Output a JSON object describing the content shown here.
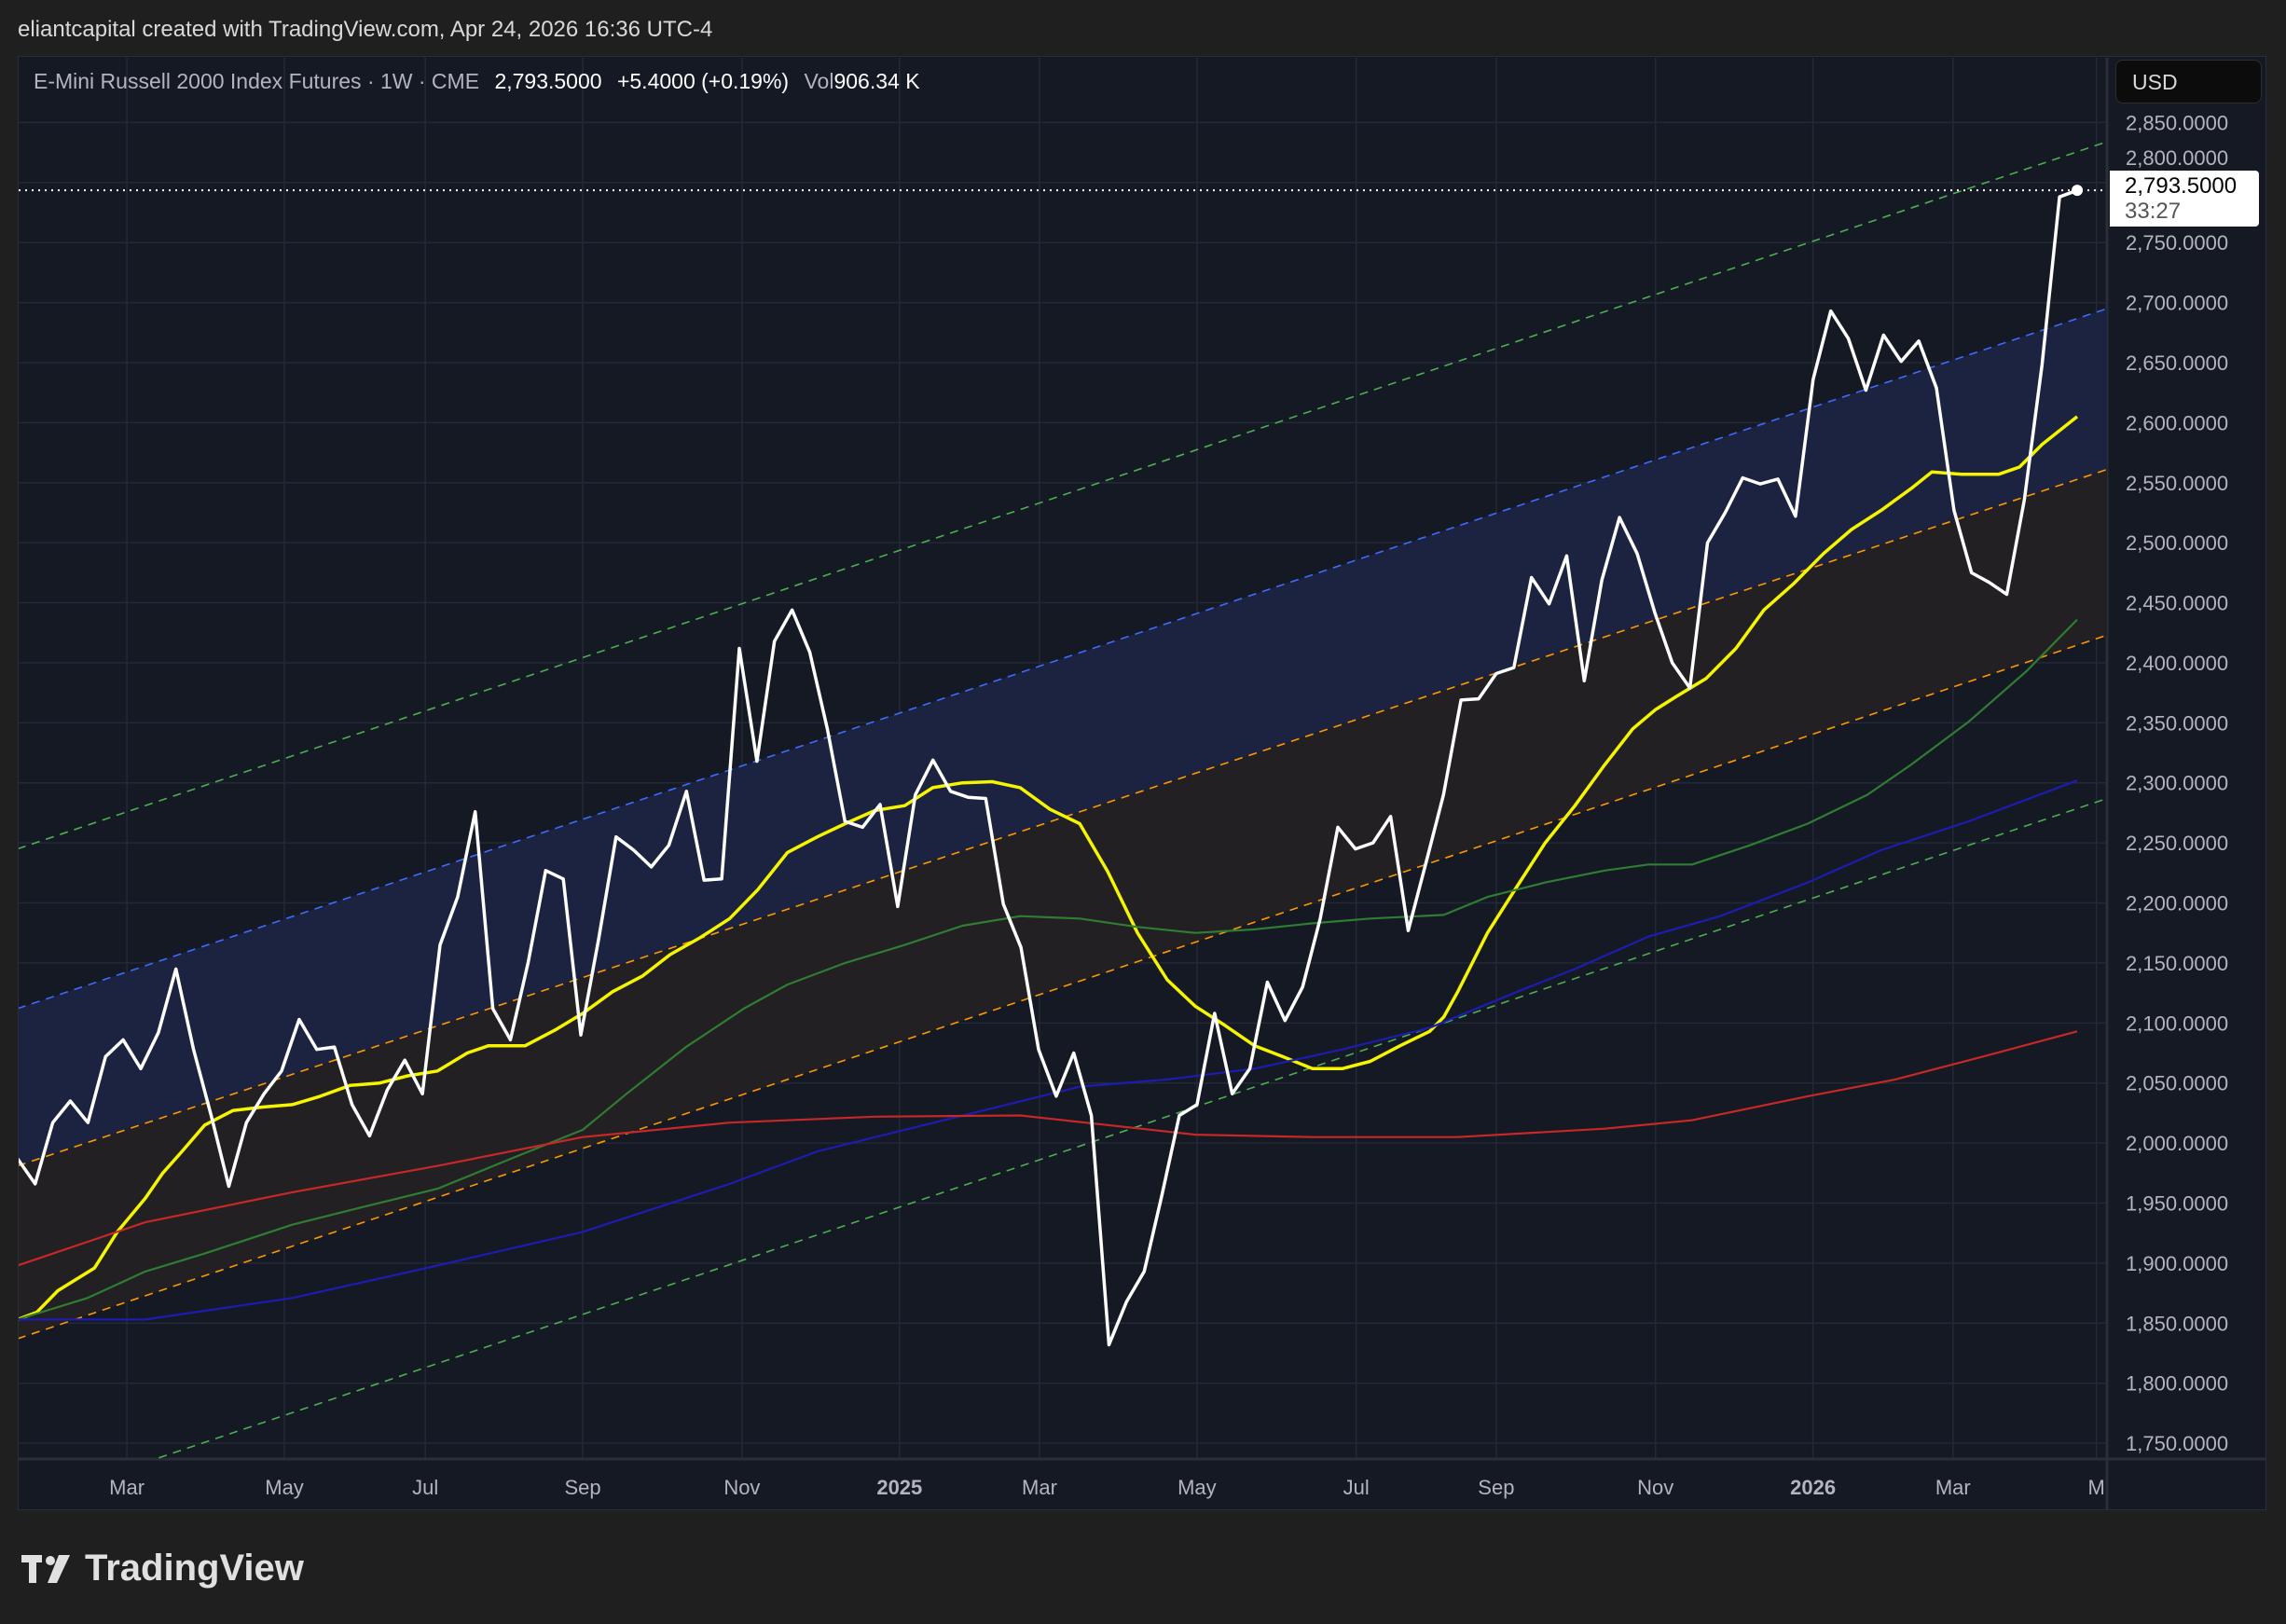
{
  "credit": "eliantcapital created with TradingView.com, Apr 24, 2026 16:36 UTC-4",
  "legend": {
    "symbol": "E-Mini Russell 2000 Index Futures · 1W · CME",
    "last": "2,793.5000",
    "change": "+5.4000 (+0.19%)",
    "vol_label": "Vol",
    "vol_value": "906.34 K"
  },
  "currency_button": "USD",
  "price_tag": {
    "price": "2,793.5000",
    "countdown": "33:27"
  },
  "logo_text": "TradingView",
  "chart_data": {
    "type": "line",
    "title": "E-Mini Russell 2000 Index Futures · 1W · CME",
    "x_unit": "week index from mid-Jan 2024",
    "ylim": [
      1725,
      2880
    ],
    "y_ticks": [
      1750,
      1800,
      1850,
      1900,
      1950,
      2000,
      2050,
      2100,
      2150,
      2200,
      2250,
      2300,
      2350,
      2400,
      2450,
      2500,
      2550,
      2600,
      2650,
      2700,
      2750,
      2800,
      2850
    ],
    "y_tick_labels": [
      "1,750.0000",
      "1,800.0000",
      "1,850.0000",
      "1,900.0000",
      "1,950.0000",
      "2,000.0000",
      "2,050.0000",
      "2,100.0000",
      "2,150.0000",
      "2,200.0000",
      "2,250.0000",
      "2,300.0000",
      "2,350.0000",
      "2,400.0000",
      "2,450.0000",
      "2,500.0000",
      "2,550.0000",
      "2,600.0000",
      "2,650.0000",
      "2,700.0000",
      "2,750.0000",
      "2,800.0000",
      "2,850.0000"
    ],
    "x_ticks": [
      {
        "label": "Mar",
        "week": 6.25,
        "bold": false
      },
      {
        "label": "May",
        "week": 15.25,
        "bold": false
      },
      {
        "label": "Jul",
        "week": 23.3,
        "bold": false
      },
      {
        "label": "Sep",
        "week": 32.3,
        "bold": false
      },
      {
        "label": "Nov",
        "week": 41.4,
        "bold": false
      },
      {
        "label": "2025",
        "week": 50.4,
        "bold": true
      },
      {
        "label": "Mar",
        "week": 58.4,
        "bold": false
      },
      {
        "label": "May",
        "week": 67.4,
        "bold": false
      },
      {
        "label": "Jul",
        "week": 76.5,
        "bold": false
      },
      {
        "label": "Sep",
        "week": 84.5,
        "bold": false
      },
      {
        "label": "Nov",
        "week": 93.6,
        "bold": false
      },
      {
        "label": "2026",
        "week": 102.6,
        "bold": true
      },
      {
        "label": "Mar",
        "week": 110.6,
        "bold": false
      },
      {
        "label": "M",
        "week": 118.8,
        "bold": false
      }
    ],
    "last_price": 2793.5,
    "close": [
      1987,
      1966,
      2017,
      2035,
      2017,
      2072,
      2086,
      2062,
      2092,
      2145,
      2078,
      2023,
      1964,
      2017,
      2041,
      2060,
      2103,
      2078,
      2080,
      2032,
      2006,
      2044,
      2069,
      2041,
      2165,
      2205,
      2276,
      2112,
      2086,
      2150,
      2227,
      2220,
      2090,
      2169,
      2255,
      2244,
      2230,
      2248,
      2293,
      2219,
      2220,
      2412,
      2318,
      2418,
      2444,
      2409,
      2345,
      2268,
      2263,
      2282,
      2197,
      2290,
      2319,
      2293,
      2288,
      2287,
      2199,
      2163,
      2078,
      2039,
      2075,
      2023,
      1832,
      1868,
      1893,
      1956,
      2023,
      2032,
      2108,
      2041,
      2062,
      2134,
      2102,
      2130,
      2187,
      2263,
      2245,
      2250,
      2272,
      2177,
      2233,
      2290,
      2369,
      2370,
      2391,
      2396,
      2471,
      2449,
      2489,
      2385,
      2469,
      2521,
      2491,
      2442,
      2400,
      2379,
      2500,
      2525,
      2554,
      2549,
      2553,
      2522,
      2636,
      2693,
      2670,
      2627,
      2673,
      2651,
      2668,
      2629,
      2527,
      2475,
      2467,
      2457,
      2536,
      2648,
      2788,
      2793.5
    ],
    "series": [
      {
        "name": "MA yellow",
        "color": "#f5f500",
        "points": [
          [
            0,
            1853
          ],
          [
            1.1,
            1859
          ],
          [
            2.3,
            1877
          ],
          [
            4.4,
            1896
          ],
          [
            5.7,
            1926
          ],
          [
            7.3,
            1954
          ],
          [
            8.3,
            1975
          ],
          [
            9.4,
            1993
          ],
          [
            10.7,
            2015
          ],
          [
            12.3,
            2027
          ],
          [
            14,
            2030
          ],
          [
            15.7,
            2032
          ],
          [
            17.3,
            2039
          ],
          [
            19,
            2048
          ],
          [
            20.7,
            2050
          ],
          [
            22.3,
            2056
          ],
          [
            24,
            2060
          ],
          [
            25.7,
            2075
          ],
          [
            26.9,
            2081
          ],
          [
            29,
            2081
          ],
          [
            30.7,
            2094
          ],
          [
            32.3,
            2108
          ],
          [
            34,
            2126
          ],
          [
            35.7,
            2139
          ],
          [
            37.3,
            2157
          ],
          [
            39,
            2171
          ],
          [
            40.7,
            2187
          ],
          [
            42.3,
            2211
          ],
          [
            44,
            2242
          ],
          [
            45.7,
            2255
          ],
          [
            47.3,
            2266
          ],
          [
            49,
            2277
          ],
          [
            50.7,
            2281
          ],
          [
            52.3,
            2296
          ],
          [
            54,
            2300
          ],
          [
            55.7,
            2301
          ],
          [
            57.3,
            2296
          ],
          [
            59,
            2278
          ],
          [
            60.7,
            2266
          ],
          [
            62.3,
            2226
          ],
          [
            64,
            2175
          ],
          [
            65.7,
            2136
          ],
          [
            67.3,
            2114
          ],
          [
            69,
            2098
          ],
          [
            70.7,
            2081
          ],
          [
            72.3,
            2072
          ],
          [
            74,
            2062
          ],
          [
            75.7,
            2062
          ],
          [
            77.3,
            2068
          ],
          [
            79,
            2081
          ],
          [
            80.7,
            2093
          ],
          [
            81.5,
            2105
          ],
          [
            82.3,
            2126
          ],
          [
            84,
            2175
          ],
          [
            85.7,
            2214
          ],
          [
            87.3,
            2250
          ],
          [
            89,
            2281
          ],
          [
            90.7,
            2315
          ],
          [
            92.3,
            2345
          ],
          [
            93.6,
            2361
          ],
          [
            94.8,
            2372
          ],
          [
            96.5,
            2387
          ],
          [
            98.2,
            2412
          ],
          [
            99.8,
            2444
          ],
          [
            101.5,
            2466
          ],
          [
            103.2,
            2491
          ],
          [
            104.8,
            2511
          ],
          [
            106.5,
            2527
          ],
          [
            108.2,
            2545
          ],
          [
            109.4,
            2559
          ],
          [
            111.1,
            2557
          ],
          [
            113.2,
            2557
          ],
          [
            114.4,
            2563
          ],
          [
            115.7,
            2582
          ],
          [
            117.7,
            2605
          ]
        ]
      },
      {
        "name": "MA green",
        "color": "#2e7d32",
        "points": [
          [
            0,
            1853
          ],
          [
            4,
            1871
          ],
          [
            7.3,
            1893
          ],
          [
            10.7,
            1908
          ],
          [
            15.7,
            1932
          ],
          [
            19.8,
            1947
          ],
          [
            24,
            1962
          ],
          [
            28.2,
            1987
          ],
          [
            32.3,
            2011
          ],
          [
            34.8,
            2041
          ],
          [
            38.2,
            2080
          ],
          [
            41.5,
            2112
          ],
          [
            44,
            2132
          ],
          [
            47.3,
            2150
          ],
          [
            50.7,
            2165
          ],
          [
            54,
            2181
          ],
          [
            57.3,
            2189
          ],
          [
            60.7,
            2187
          ],
          [
            64,
            2180
          ],
          [
            67.3,
            2175
          ],
          [
            70.7,
            2178
          ],
          [
            74,
            2183
          ],
          [
            77.3,
            2187
          ],
          [
            81.5,
            2190
          ],
          [
            84,
            2205
          ],
          [
            87.3,
            2217
          ],
          [
            90.7,
            2227
          ],
          [
            93.2,
            2232
          ],
          [
            95.7,
            2232
          ],
          [
            99,
            2248
          ],
          [
            102.3,
            2266
          ],
          [
            105.7,
            2290
          ],
          [
            108.2,
            2315
          ],
          [
            111.5,
            2351
          ],
          [
            114.8,
            2393
          ],
          [
            117.7,
            2436
          ]
        ]
      },
      {
        "name": "MA blue",
        "color": "#1c1cb0",
        "points": [
          [
            0,
            1853
          ],
          [
            7.3,
            1853
          ],
          [
            15.7,
            1871
          ],
          [
            24,
            1898
          ],
          [
            32.3,
            1926
          ],
          [
            40.7,
            1966
          ],
          [
            45.7,
            1993
          ],
          [
            50.7,
            2011
          ],
          [
            55.7,
            2029
          ],
          [
            60.7,
            2047
          ],
          [
            65.7,
            2053
          ],
          [
            70.7,
            2062
          ],
          [
            75.7,
            2078
          ],
          [
            80.7,
            2096
          ],
          [
            85.7,
            2126
          ],
          [
            89,
            2145
          ],
          [
            93.2,
            2172
          ],
          [
            97.3,
            2189
          ],
          [
            102.3,
            2217
          ],
          [
            106.5,
            2244
          ],
          [
            111.5,
            2268
          ],
          [
            117.7,
            2302
          ]
        ]
      },
      {
        "name": "MA red",
        "color": "#c62828",
        "points": [
          [
            0,
            1898
          ],
          [
            7.3,
            1934
          ],
          [
            15.7,
            1959
          ],
          [
            24,
            1981
          ],
          [
            32.3,
            2005
          ],
          [
            40.7,
            2017
          ],
          [
            49,
            2022
          ],
          [
            57.3,
            2023
          ],
          [
            62.3,
            2015
          ],
          [
            67.3,
            2007
          ],
          [
            74,
            2005
          ],
          [
            82.3,
            2005
          ],
          [
            90.7,
            2012
          ],
          [
            95.7,
            2019
          ],
          [
            102.3,
            2039
          ],
          [
            107.3,
            2053
          ],
          [
            112.3,
            2072
          ],
          [
            117.7,
            2093
          ]
        ]
      }
    ],
    "channel": [
      {
        "name": "upper green",
        "color": "#4caf50",
        "start": [
          0,
          2245
        ],
        "end": [
          119.4,
          2834
        ]
      },
      {
        "name": "blue",
        "color": "#3d6bff",
        "start": [
          0,
          2112
        ],
        "end": [
          119.4,
          2695
        ]
      },
      {
        "name": "orange upper",
        "color": "#ff9800",
        "start": [
          0,
          1981
        ],
        "end": [
          119.4,
          2561
        ]
      },
      {
        "name": "orange lower",
        "color": "#ff9800",
        "start": [
          0,
          1837
        ],
        "end": [
          119.4,
          2423
        ]
      },
      {
        "name": "lower green",
        "color": "#4caf50",
        "start": [
          0,
          1698
        ],
        "end": [
          119.4,
          2287
        ]
      }
    ],
    "fills": [
      {
        "between": [
          "blue",
          "orange upper"
        ],
        "color": "#1b2340"
      },
      {
        "between": [
          "orange upper",
          "orange lower"
        ],
        "color": "#232023"
      }
    ],
    "grid": true
  }
}
